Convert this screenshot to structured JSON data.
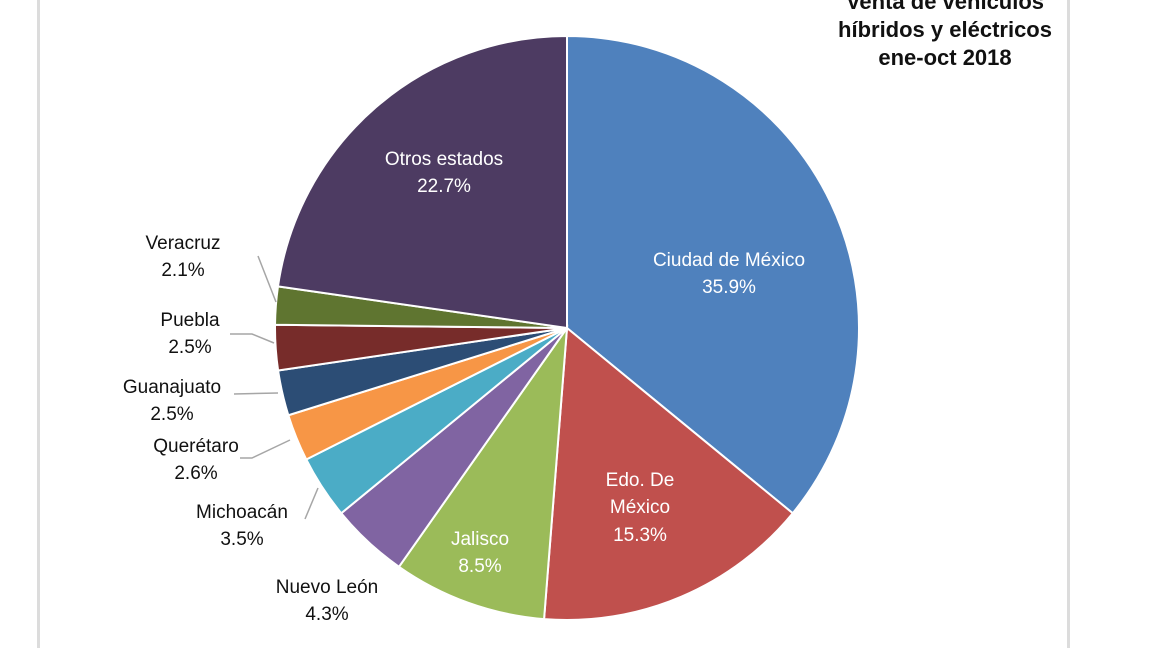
{
  "chart_data": {
    "type": "pie",
    "title": [
      "Venta de vehículos",
      "híbridos y eléctricos",
      "ene-oct 2018"
    ],
    "start": "top, clockwise",
    "slices": [
      {
        "label": "Ciudad de México",
        "value": 35.9,
        "display": "35.9%",
        "color": "#4f81bd",
        "inside": true
      },
      {
        "label": "Edo. De México",
        "value": 15.3,
        "display": "15.3%",
        "color": "#c0504d",
        "inside": true
      },
      {
        "label": "Jalisco",
        "value": 8.5,
        "display": "8.5%",
        "color": "#9bbb59",
        "inside": true
      },
      {
        "label": "Nuevo León",
        "value": 4.3,
        "display": "4.3%",
        "color": "#8064a2",
        "inside": false
      },
      {
        "label": "Michoacán",
        "value": 3.5,
        "display": "3.5%",
        "color": "#4bacc6",
        "inside": false
      },
      {
        "label": "Querétaro",
        "value": 2.6,
        "display": "2.6%",
        "color": "#f79646",
        "inside": false
      },
      {
        "label": "Guanajuato",
        "value": 2.5,
        "display": "2.5%",
        "color": "#2c4d75",
        "inside": false
      },
      {
        "label": "Puebla",
        "value": 2.5,
        "display": "2.5%",
        "color": "#772c2a",
        "inside": false
      },
      {
        "label": "Veracruz",
        "value": 2.1,
        "display": "2.1%",
        "color": "#5f7530",
        "inside": false
      },
      {
        "label": "Otros estados",
        "value": 22.7,
        "display": "22.7%",
        "color": "#4d3b62",
        "inside": true
      }
    ]
  }
}
